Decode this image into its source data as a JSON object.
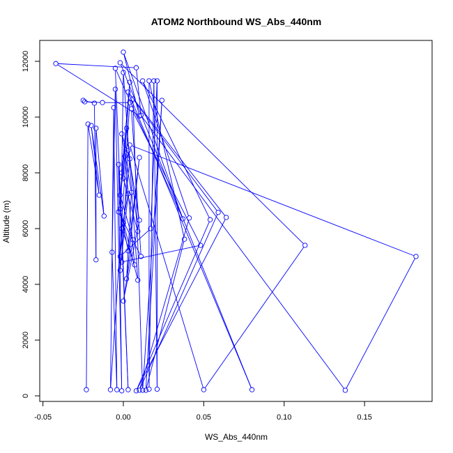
{
  "chart_data": {
    "type": "line",
    "title": "ATOM2 Northbound WS_Abs_440nm",
    "xlabel": "WS_Abs_440nm",
    "ylabel": "Altitude (m)",
    "xlim": [
      -0.052,
      0.192
    ],
    "ylim": [
      -200,
      12750
    ],
    "x_ticks": [
      -0.05,
      0.0,
      0.05,
      0.1,
      0.15
    ],
    "x_tick_labels": [
      "-0.05",
      "0.00",
      "0.05",
      "0.10",
      "0.15"
    ],
    "y_ticks": [
      0,
      2000,
      4000,
      6000,
      8000,
      10000,
      12000
    ],
    "y_tick_labels": [
      "0",
      "2000",
      "4000",
      "6000",
      "8000",
      "10000",
      "12000"
    ],
    "grid": false,
    "series_color": "#0000ff",
    "points": [
      {
        "x": -0.023,
        "y": 220
      },
      {
        "x": -0.022,
        "y": 9750
      },
      {
        "x": -0.015,
        "y": 7200
      },
      {
        "x": -0.02,
        "y": 9700
      },
      {
        "x": -0.012,
        "y": 6450
      },
      {
        "x": -0.017,
        "y": 9600
      },
      {
        "x": -0.017,
        "y": 4880
      },
      {
        "x": -0.018,
        "y": 10500
      },
      {
        "x": -0.025,
        "y": 10600
      },
      {
        "x": -0.024,
        "y": 10550
      },
      {
        "x": -0.013,
        "y": 10520
      },
      {
        "x": 0.004,
        "y": 10520
      },
      {
        "x": -0.008,
        "y": 220
      },
      {
        "x": -0.006,
        "y": 10340
      },
      {
        "x": -0.004,
        "y": 220
      },
      {
        "x": -0.007,
        "y": 5150
      },
      {
        "x": -0.005,
        "y": 11000
      },
      {
        "x": -0.001,
        "y": 180
      },
      {
        "x": -0.003,
        "y": 8300
      },
      {
        "x": 0.003,
        "y": 220
      },
      {
        "x": -0.005,
        "y": 11750
      },
      {
        "x": 0.037,
        "y": 6350
      },
      {
        "x": 0.0,
        "y": 12330
      },
      {
        "x": 0.01,
        "y": 10040
      },
      {
        "x": -0.042,
        "y": 11920
      },
      {
        "x": 0.008,
        "y": 11770
      },
      {
        "x": 0.011,
        "y": 10060
      },
      {
        "x": 0.138,
        "y": 200
      },
      {
        "x": 0.182,
        "y": 5000
      },
      {
        "x": 0.004,
        "y": 9000
      },
      {
        "x": 0.05,
        "y": 220
      },
      {
        "x": 0.113,
        "y": 5400
      },
      {
        "x": -0.002,
        "y": 11950
      },
      {
        "x": 0.08,
        "y": 220
      },
      {
        "x": 0.003,
        "y": 10900
      },
      {
        "x": 0.064,
        "y": 6400
      },
      {
        "x": 0.008,
        "y": 180
      },
      {
        "x": 0.054,
        "y": 6320
      },
      {
        "x": 0.012,
        "y": 11300
      },
      {
        "x": 0.041,
        "y": 6380
      },
      {
        "x": 0.01,
        "y": 200
      },
      {
        "x": 0.059,
        "y": 6580
      },
      {
        "x": 0.006,
        "y": 10650
      },
      {
        "x": 0.012,
        "y": 200
      },
      {
        "x": 0.024,
        "y": 10600
      },
      {
        "x": 0.014,
        "y": 200
      },
      {
        "x": 0.038,
        "y": 5620
      },
      {
        "x": 0.016,
        "y": 11300
      },
      {
        "x": 0.016,
        "y": 240
      },
      {
        "x": 0.019,
        "y": 11300
      },
      {
        "x": 0.021,
        "y": 240
      },
      {
        "x": 0.021,
        "y": 11300
      },
      {
        "x": 0.017,
        "y": 6000
      },
      {
        "x": -0.002,
        "y": 5000
      },
      {
        "x": 0.0,
        "y": 6200
      },
      {
        "x": 0.004,
        "y": 8500
      },
      {
        "x": -0.001,
        "y": 9400
      },
      {
        "x": 0.005,
        "y": 7300
      },
      {
        "x": 0.002,
        "y": 4200
      },
      {
        "x": 0.01,
        "y": 8550
      },
      {
        "x": 0.003,
        "y": 5200
      },
      {
        "x": -0.002,
        "y": 6700
      },
      {
        "x": 0.009,
        "y": 4150
      },
      {
        "x": 0.0,
        "y": 11600
      },
      {
        "x": -0.002,
        "y": 4500
      },
      {
        "x": 0.003,
        "y": 7250
      },
      {
        "x": -0.001,
        "y": 6000
      },
      {
        "x": 0.007,
        "y": 4700
      },
      {
        "x": 0.001,
        "y": 8600
      },
      {
        "x": -0.003,
        "y": 6600
      },
      {
        "x": 0.011,
        "y": 5000
      },
      {
        "x": 0.005,
        "y": 10300
      },
      {
        "x": 0.048,
        "y": 5400
      },
      {
        "x": -0.001,
        "y": 4800
      },
      {
        "x": 0.003,
        "y": 8800
      },
      {
        "x": 0.01,
        "y": 6300
      },
      {
        "x": 0.0,
        "y": 3400
      },
      {
        "x": 0.006,
        "y": 5600
      },
      {
        "x": -0.002,
        "y": 7200
      },
      {
        "x": 0.002,
        "y": 9600
      },
      {
        "x": 0.009,
        "y": 5900
      },
      {
        "x": -0.001,
        "y": 8000
      },
      {
        "x": 0.004,
        "y": 11250
      },
      {
        "x": 0.0,
        "y": 7800
      }
    ]
  }
}
